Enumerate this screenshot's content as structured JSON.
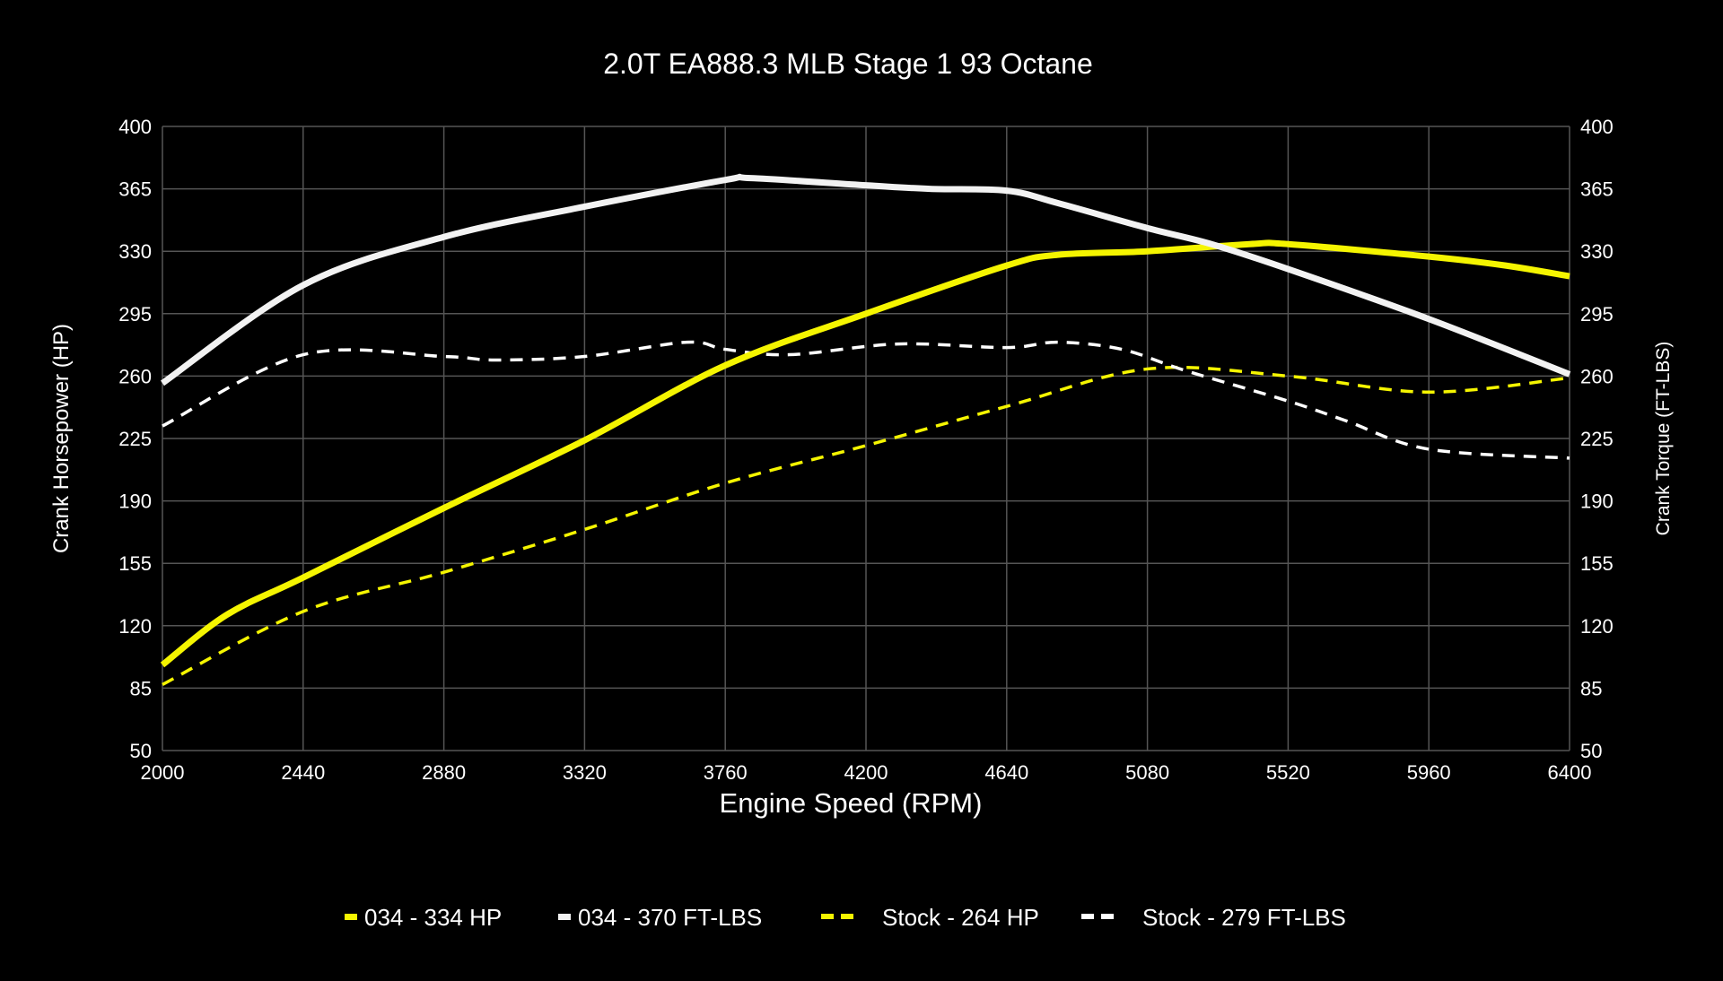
{
  "chart_data": {
    "type": "line",
    "title": "2.0T EA888.3 MLB Stage 1 93 Octane",
    "xlabel": "Engine Speed (RPM)",
    "ylabel_left": "Crank Horsepower (HP)",
    "ylabel_right": "Crank Torque (FT-LBS)",
    "xlim": [
      2000,
      6400
    ],
    "ylim": [
      50,
      400
    ],
    "xticks": [
      2000,
      2440,
      2880,
      3320,
      3760,
      4200,
      4640,
      5080,
      5520,
      5960,
      6400
    ],
    "yticks": [
      50,
      85,
      120,
      155,
      190,
      225,
      260,
      295,
      330,
      365,
      400
    ],
    "grid": true,
    "legend_position": "bottom",
    "background": "#000000",
    "series": [
      {
        "name": "034 - 334 HP",
        "color": "#f5f500",
        "style": "solid",
        "x": [
          2000,
          2200,
          2440,
          2880,
          3320,
          3760,
          4200,
          4640,
          4800,
          5080,
          5400,
          5520,
          5960,
          6200,
          6400
        ],
        "y": [
          98,
          126,
          147,
          186,
          224,
          266,
          295,
          322,
          328,
          330,
          334,
          334,
          327,
          322,
          316
        ]
      },
      {
        "name": "034 - 370 FT-LBS",
        "color": "#f2f2f2",
        "style": "solid",
        "x": [
          2000,
          2440,
          2880,
          3320,
          3760,
          3840,
          4200,
          4400,
          4640,
          4800,
          5080,
          5280,
          5520,
          5960,
          6400
        ],
        "y": [
          256,
          311,
          338,
          355,
          370,
          371,
          367,
          365,
          364,
          357,
          343,
          334,
          320,
          292,
          261
        ]
      },
      {
        "name": "Stock - 264 HP",
        "color": "#f5f500",
        "style": "dashed",
        "x": [
          2000,
          2440,
          2880,
          3320,
          3760,
          4200,
          4640,
          5080,
          5520,
          5960,
          6400
        ],
        "y": [
          87,
          128,
          150,
          174,
          200,
          221,
          243,
          264,
          260,
          251,
          259
        ]
      },
      {
        "name": "Stock - 279 FT-LBS",
        "color": "#ffffff",
        "style": "dashed",
        "x": [
          2000,
          2440,
          2880,
          3040,
          3320,
          3640,
          3760,
          3960,
          4300,
          4640,
          4800,
          5000,
          5200,
          5520,
          5700,
          5960,
          6400
        ],
        "y": [
          232,
          272,
          271,
          269,
          271,
          279,
          275,
          272,
          278,
          276,
          279,
          275,
          263,
          246,
          235,
          219,
          214
        ]
      }
    ]
  }
}
